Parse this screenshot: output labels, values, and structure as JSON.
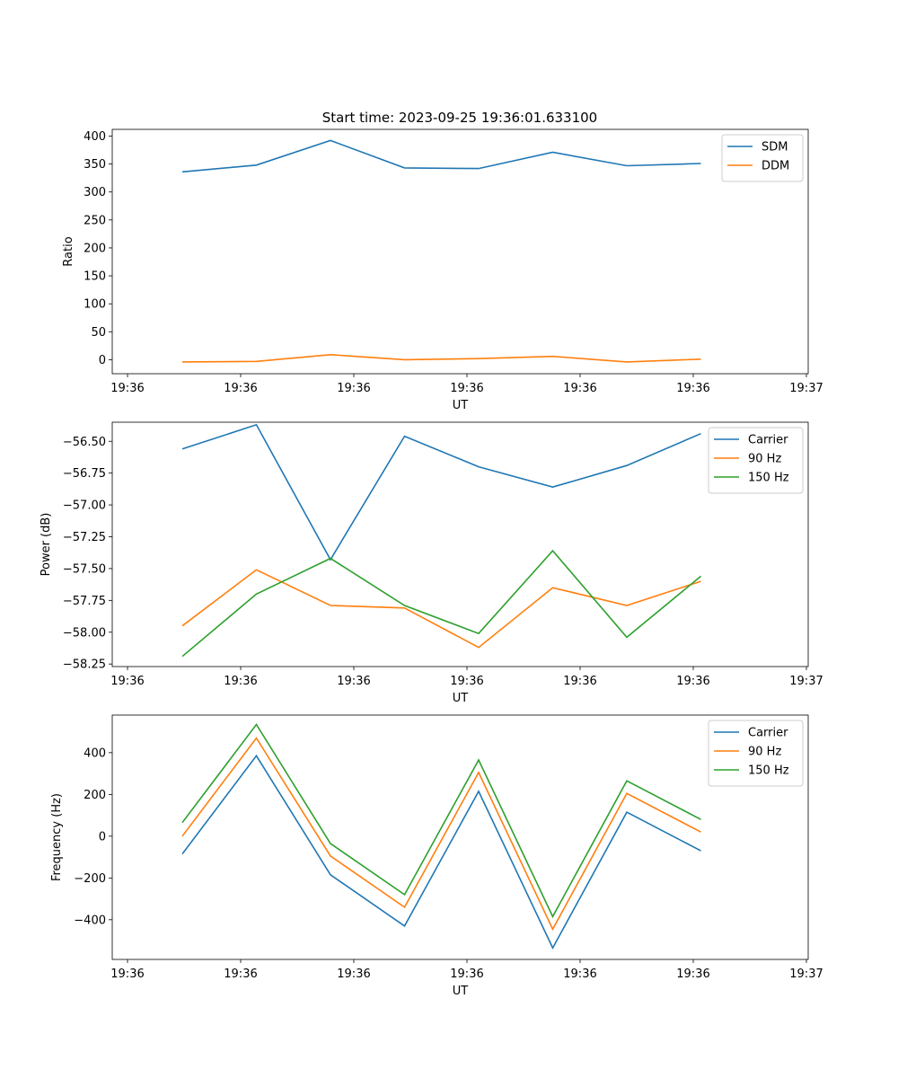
{
  "figure": {
    "title": "Start time: 2023-09-25 19:36:01.633100"
  },
  "colors": {
    "blue": "#1f77b4",
    "orange": "#ff7f0e",
    "green": "#2ca02c"
  },
  "chart_data": [
    {
      "type": "line",
      "title": "Start time: 2023-09-25 19:36:01.633100",
      "xlabel": "UT",
      "ylabel": "Ratio",
      "x_ticks": [
        "19:36",
        "19:36",
        "19:36",
        "19:36",
        "19:36",
        "19:36",
        "19:37"
      ],
      "y_ticks": [
        "0",
        "50",
        "100",
        "150",
        "200",
        "250",
        "300",
        "350",
        "400"
      ],
      "ylim": [
        -25,
        412
      ],
      "legend": "top-right",
      "series": [
        {
          "name": "SDM",
          "color": "#1f77b4",
          "values": [
            336,
            348,
            392,
            343,
            342,
            371,
            347,
            351
          ]
        },
        {
          "name": "DDM",
          "color": "#ff7f0e",
          "values": [
            -4,
            -3,
            9,
            0,
            2,
            6,
            -4,
            1
          ]
        }
      ]
    },
    {
      "type": "line",
      "xlabel": "UT",
      "ylabel": "Power (dB)",
      "x_ticks": [
        "19:36",
        "19:36",
        "19:36",
        "19:36",
        "19:36",
        "19:36",
        "19:37"
      ],
      "y_ticks": [
        "−58.25",
        "−58.00",
        "−57.75",
        "−57.50",
        "−57.25",
        "−57.00",
        "−56.75",
        "−56.50"
      ],
      "ylim": [
        -58.27,
        -56.35
      ],
      "legend": "top-right",
      "series": [
        {
          "name": "Carrier",
          "color": "#1f77b4",
          "values": [
            -56.56,
            -56.37,
            -57.43,
            -56.46,
            -56.7,
            -56.86,
            -56.69,
            -56.44
          ]
        },
        {
          "name": "90 Hz",
          "color": "#ff7f0e",
          "values": [
            -57.95,
            -57.51,
            -57.79,
            -57.81,
            -58.12,
            -57.65,
            -57.79,
            -57.6
          ]
        },
        {
          "name": "150 Hz",
          "color": "#2ca02c",
          "values": [
            -58.19,
            -57.7,
            -57.42,
            -57.79,
            -58.01,
            -57.36,
            -58.04,
            -57.56
          ]
        }
      ]
    },
    {
      "type": "line",
      "xlabel": "UT",
      "ylabel": "Frequency (Hz)",
      "x_ticks": [
        "19:36",
        "19:36",
        "19:36",
        "19:36",
        "19:36",
        "19:36",
        "19:37"
      ],
      "y_ticks": [
        "−400",
        "−200",
        "0",
        "200",
        "400"
      ],
      "ylim": [
        -590,
        580
      ],
      "legend": "top-right",
      "series": [
        {
          "name": "Carrier",
          "color": "#1f77b4",
          "values": [
            -85,
            385,
            -185,
            -430,
            215,
            -535,
            115,
            -70
          ]
        },
        {
          "name": "90 Hz",
          "color": "#ff7f0e",
          "values": [
            0,
            470,
            -95,
            -340,
            305,
            -445,
            205,
            20
          ]
        },
        {
          "name": "150 Hz",
          "color": "#2ca02c",
          "values": [
            65,
            535,
            -35,
            -280,
            365,
            -385,
            265,
            80
          ]
        }
      ]
    }
  ]
}
